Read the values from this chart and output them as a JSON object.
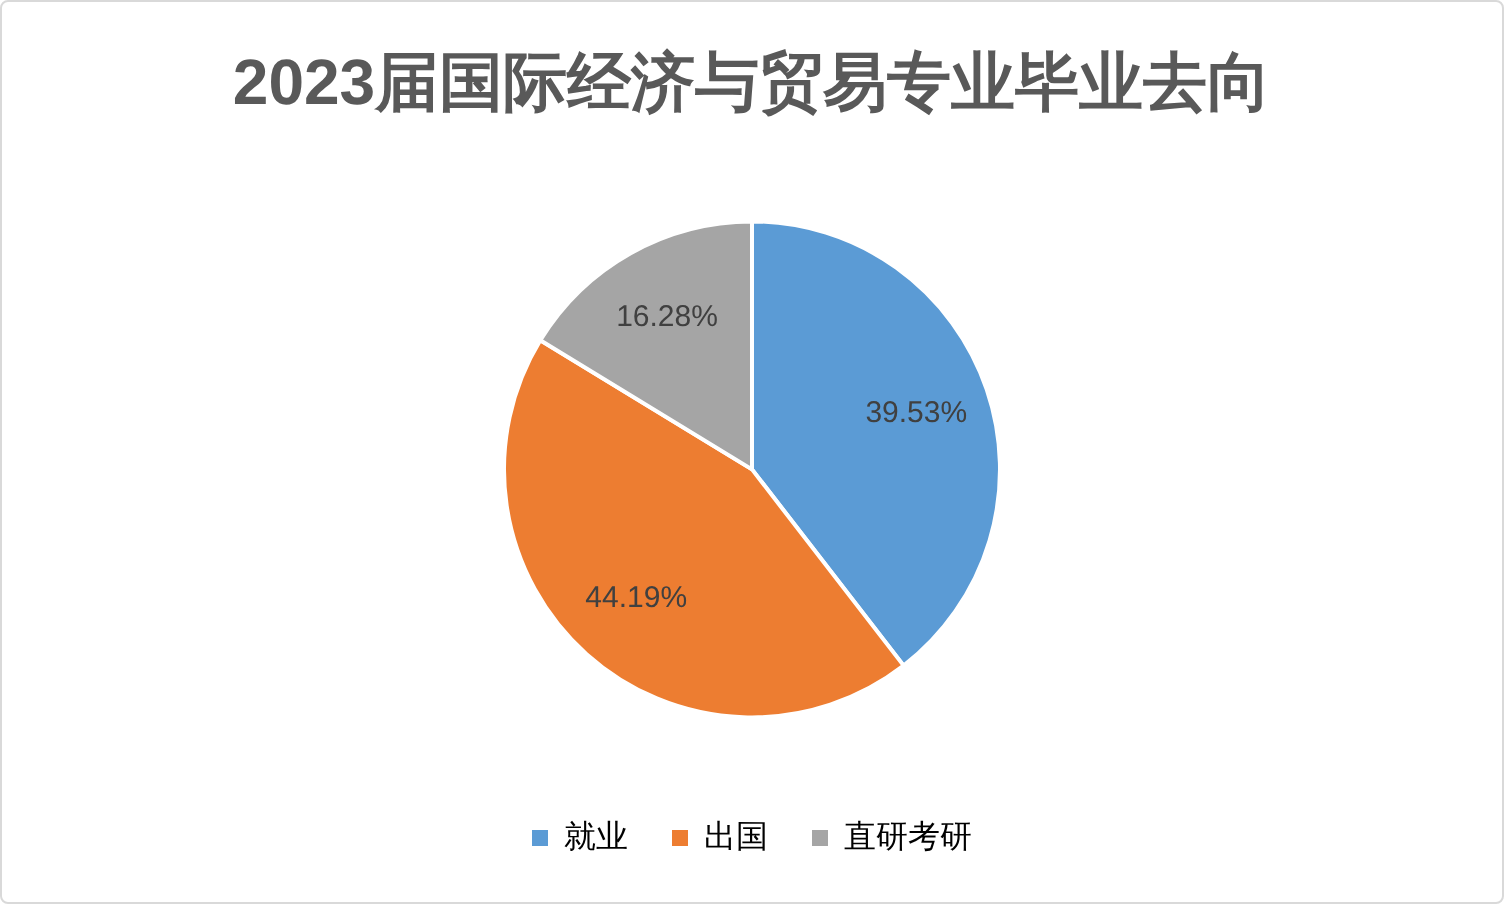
{
  "chart_data": {
    "type": "pie",
    "title": "2023届国际经济与贸易专业毕业去向",
    "categories": [
      "就业",
      "出国",
      "直研考研"
    ],
    "values": [
      39.53,
      44.19,
      16.28
    ],
    "colors": [
      "#5b9bd5",
      "#ed7d31",
      "#a5a5a5"
    ],
    "value_labels": [
      "39.53%",
      "44.19%",
      "16.28%"
    ],
    "legend": "bottom"
  }
}
